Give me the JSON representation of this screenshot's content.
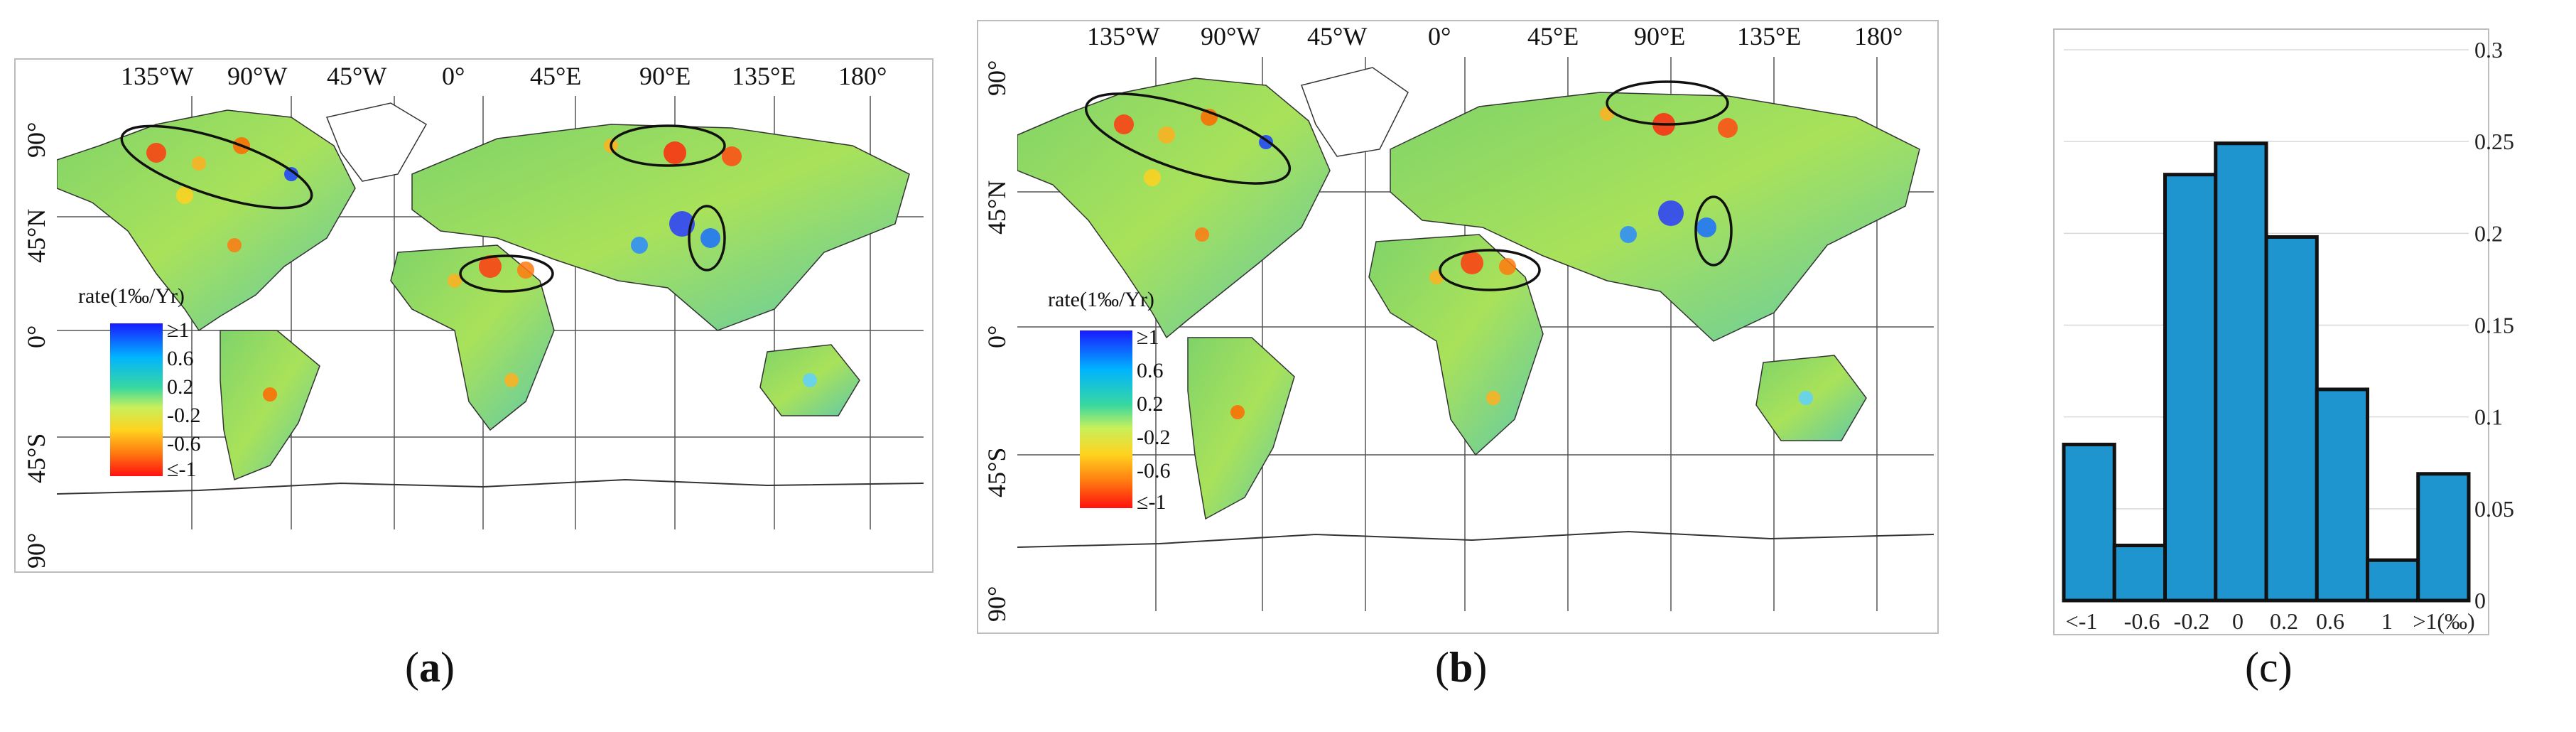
{
  "panels": [
    {
      "id": "a",
      "caption_letter": "a",
      "longitudes": [
        "135°W",
        "90°W",
        "45°W",
        "0°",
        "45°E",
        "90°E",
        "135°E",
        "180°"
      ],
      "latitudes": [
        "90°",
        "45°N",
        "0°",
        "45°S",
        "90°"
      ],
      "legend_title": "rate(1‰/Yr)",
      "legend_ticks": [
        "≥1",
        "0.6",
        "0.2",
        "-0.2",
        "-0.6",
        "≤-1"
      ]
    },
    {
      "id": "b",
      "caption_letter": "b",
      "longitudes": [
        "135°W",
        "90°W",
        "45°W",
        "0°",
        "45°E",
        "90°E",
        "135°E",
        "180°"
      ],
      "latitudes": [
        "90°",
        "45°N",
        "0°",
        "45°S",
        "90°"
      ],
      "legend_title": "rate(1‰/Yr)",
      "legend_ticks": [
        "≥1",
        "0.6",
        "0.2",
        "-0.2",
        "-0.6",
        "≤-1"
      ]
    }
  ],
  "colors": {
    "bar_fill": "#1f95d0",
    "bar_edge": "#111111",
    "legend_high": "#1a1aff",
    "legend_low": "#ff1010"
  },
  "chart_data": {
    "type": "bar",
    "caption_letter": "c",
    "categories": [
      "<-1",
      "-1 to -0.6",
      "-0.6 to -0.2",
      "-0.2 to 0",
      "0 to 0.2",
      "0.2 to 0.6",
      "0.6 to 1",
      ">1"
    ],
    "values": [
      0.085,
      0.03,
      0.232,
      0.249,
      0.198,
      0.115,
      0.022,
      0.069
    ],
    "ylim": [
      0,
      0.3
    ],
    "yticks": [
      "0",
      "0.05",
      "0.1",
      "0.15",
      "0.2",
      "0.25",
      "0.3"
    ],
    "xtick_labels": [
      "<-1",
      "-0.6",
      "-0.2",
      "0",
      "0.2",
      "0.6",
      "1",
      ">1(‰)"
    ],
    "grid": true
  }
}
